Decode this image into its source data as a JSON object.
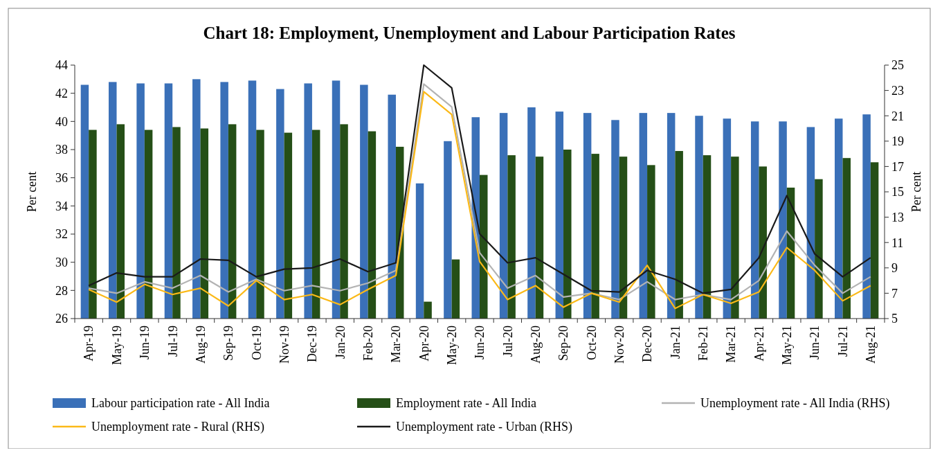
{
  "chart_data": {
    "type": "bar",
    "title": "Chart 18: Employment, Unemployment and Labour Participation Rates",
    "ylabel": "Per cent",
    "y2label": "Per cent",
    "categories": [
      "Apr-19",
      "May-19",
      "Jun-19",
      "Jul-19",
      "Aug-19",
      "Sep-19",
      "Oct-19",
      "Nov-19",
      "Dec-19",
      "Jan-20",
      "Feb-20",
      "Mar-20",
      "Apr-20",
      "May-20",
      "Jun-20",
      "Jul-20",
      "Aug-20",
      "Sep-20",
      "Oct-20",
      "Nov-20",
      "Dec-20",
      "Jan-21",
      "Feb-21",
      "Mar-21",
      "Apr-21",
      "May-21",
      "Jun-21",
      "Jul-21",
      "Aug-21"
    ],
    "series": [
      {
        "name": "Labour participation rate - All India",
        "color": "#3a70b8",
        "values": [
          42.6,
          42.8,
          42.7,
          42.7,
          43.0,
          42.8,
          42.9,
          42.3,
          42.7,
          42.9,
          42.6,
          41.9,
          35.6,
          38.6,
          40.3,
          40.6,
          41.0,
          40.7,
          40.6,
          40.1,
          40.6,
          40.6,
          40.4,
          40.2,
          40.0,
          40.0,
          39.6,
          40.2,
          40.5
        ]
      },
      {
        "name": "Employment rate - All India",
        "color": "#254f17",
        "values": [
          39.4,
          39.8,
          39.4,
          39.6,
          39.5,
          39.8,
          39.4,
          39.2,
          39.4,
          39.8,
          39.3,
          38.2,
          27.2,
          30.2,
          36.2,
          37.6,
          37.5,
          38.0,
          37.7,
          37.5,
          36.9,
          37.9,
          37.6,
          37.5,
          36.8,
          35.3,
          35.9,
          37.4,
          37.1
        ]
      },
      {
        "name": "Unemployment rate - All India (RHS)",
        "type": "line",
        "axis": "y2",
        "color": "#b3b3b3",
        "values": [
          7.4,
          7.0,
          7.9,
          7.4,
          8.4,
          7.1,
          8.1,
          7.2,
          7.6,
          7.2,
          7.8,
          8.8,
          23.5,
          21.7,
          10.2,
          7.4,
          8.4,
          6.7,
          7.0,
          6.5,
          7.9,
          6.5,
          6.9,
          6.5,
          8.0,
          11.9,
          9.2,
          7.0,
          8.3
        ]
      },
      {
        "name": "Unemployment rate - Rural (RHS)",
        "type": "line",
        "axis": "y2",
        "color": "#fbb918",
        "values": [
          7.3,
          6.3,
          7.7,
          6.9,
          7.4,
          6.0,
          8.0,
          6.5,
          6.9,
          6.1,
          7.3,
          8.4,
          22.9,
          21.1,
          9.5,
          6.5,
          7.6,
          5.9,
          7.0,
          6.3,
          9.2,
          5.8,
          6.9,
          6.2,
          7.1,
          10.6,
          8.8,
          6.4,
          7.6
        ]
      },
      {
        "name": "Unemployment rate - Urban (RHS)",
        "type": "line",
        "axis": "y2",
        "color": "#1a1a1a",
        "values": [
          7.6,
          8.6,
          8.3,
          8.3,
          9.7,
          9.6,
          8.3,
          8.9,
          9.0,
          9.7,
          8.7,
          9.4,
          25.0,
          23.2,
          11.7,
          9.4,
          9.8,
          8.5,
          7.2,
          7.1,
          8.8,
          8.1,
          7.0,
          7.3,
          9.8,
          14.7,
          10.1,
          8.3,
          9.8
        ]
      }
    ],
    "ylim": [
      26,
      44
    ],
    "yticks": [
      26,
      28,
      30,
      32,
      34,
      36,
      38,
      40,
      42,
      44
    ],
    "y2lim": [
      5,
      25
    ],
    "y2ticks": [
      5,
      7,
      9,
      11,
      13,
      15,
      17,
      19,
      21,
      23,
      25
    ],
    "legend": "bottom",
    "grid": false,
    "line_style": "solid"
  }
}
